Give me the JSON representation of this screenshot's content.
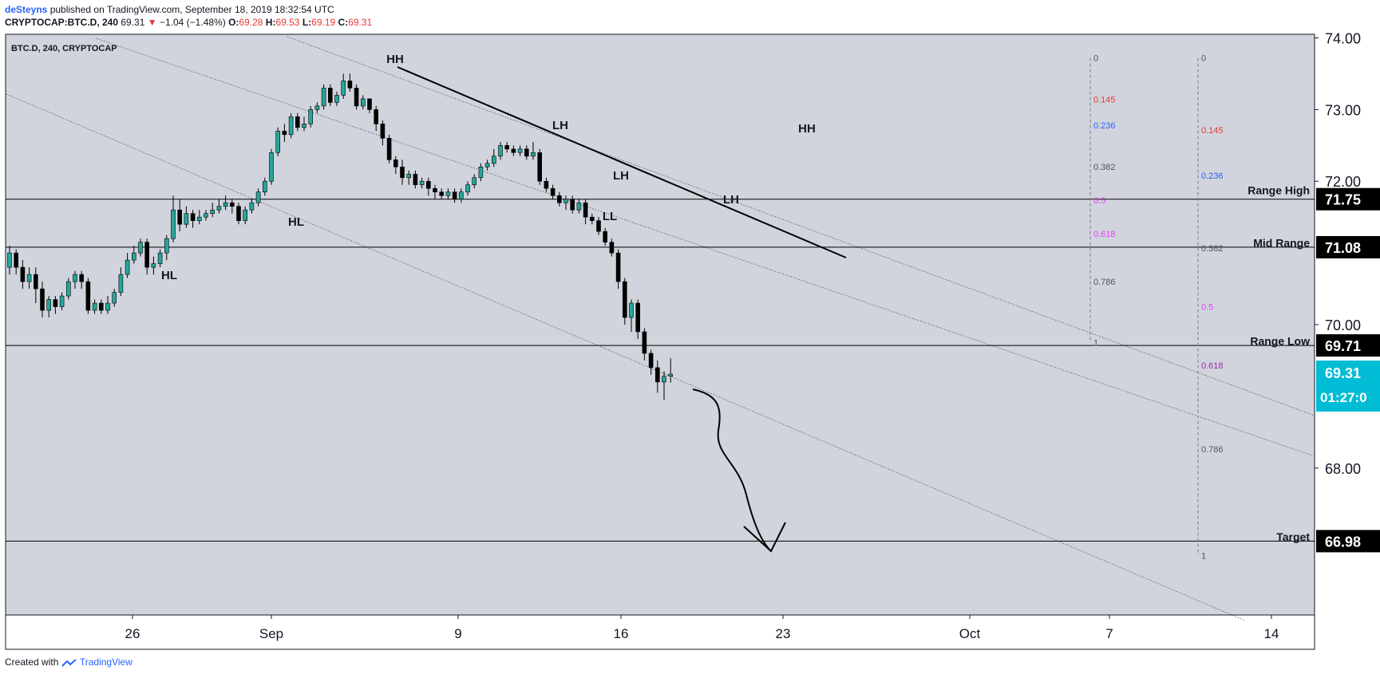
{
  "header": {
    "author": "deSteyns",
    "published": "published on TradingView.com, September 18, 2019 18:32:54 UTC",
    "symbol": "CRYPTOCAP:BTC.D, 240",
    "last": "69.31",
    "change": "−1.04 (−1.48%)",
    "o_label": "O:",
    "o": "69.28",
    "h_label": "H:",
    "h": "69.53",
    "l_label": "L:",
    "l": "69.19",
    "c_label": "C:",
    "c": "69.31"
  },
  "footer": {
    "created_with": "Created with",
    "brand": "TradingView"
  },
  "chart_data": {
    "type": "candlestick",
    "title": "BTC.D, 240, CRYPTOCAP",
    "ylim": [
      65.95,
      74.05
    ],
    "yticks": [
      "74.00",
      "73.00",
      "72.00",
      "70.00",
      "68.00"
    ],
    "xticks": [
      "26",
      "Sep",
      "9",
      "16",
      "23",
      "Oct",
      "7",
      "14"
    ],
    "colors": {
      "bg": "#d1d4dc",
      "up": "#26a69a",
      "line": "#000000",
      "fib_dash": "#787b86",
      "current": "#00bcd4"
    },
    "candles": [
      [
        70.8,
        71.0,
        71.1,
        70.7
      ],
      [
        71.0,
        70.8,
        71.05,
        70.7
      ],
      [
        70.8,
        70.6,
        70.9,
        70.5
      ],
      [
        70.6,
        70.7,
        70.8,
        70.5
      ],
      [
        70.7,
        70.5,
        70.8,
        70.3
      ],
      [
        70.5,
        70.2,
        70.6,
        70.1
      ],
      [
        70.2,
        70.35,
        70.4,
        70.1
      ],
      [
        70.35,
        70.25,
        70.4,
        70.15
      ],
      [
        70.25,
        70.4,
        70.45,
        70.2
      ],
      [
        70.4,
        70.6,
        70.65,
        70.35
      ],
      [
        70.6,
        70.7,
        70.75,
        70.5
      ],
      [
        70.7,
        70.6,
        70.75,
        70.5
      ],
      [
        70.6,
        70.2,
        70.65,
        70.15
      ],
      [
        70.2,
        70.3,
        70.35,
        70.15
      ],
      [
        70.3,
        70.2,
        70.35,
        70.15
      ],
      [
        70.2,
        70.3,
        70.4,
        70.15
      ],
      [
        70.3,
        70.45,
        70.5,
        70.25
      ],
      [
        70.45,
        70.7,
        70.8,
        70.4
      ],
      [
        70.7,
        70.9,
        71.0,
        70.65
      ],
      [
        70.9,
        71.0,
        71.1,
        70.85
      ],
      [
        71.0,
        71.15,
        71.2,
        70.95
      ],
      [
        71.15,
        70.8,
        71.2,
        70.7
      ],
      [
        70.8,
        70.85,
        70.95,
        70.7
      ],
      [
        70.85,
        71.0,
        71.05,
        70.8
      ],
      [
        71.0,
        71.2,
        71.25,
        70.9
      ],
      [
        71.2,
        71.6,
        71.8,
        71.15
      ],
      [
        71.6,
        71.4,
        71.75,
        71.3
      ],
      [
        71.4,
        71.55,
        71.65,
        71.35
      ],
      [
        71.55,
        71.45,
        71.6,
        71.35
      ],
      [
        71.45,
        71.5,
        71.6,
        71.4
      ],
      [
        71.5,
        71.55,
        71.6,
        71.45
      ],
      [
        71.55,
        71.6,
        71.7,
        71.5
      ],
      [
        71.6,
        71.65,
        71.75,
        71.55
      ],
      [
        71.65,
        71.7,
        71.8,
        71.6
      ],
      [
        71.7,
        71.65,
        71.75,
        71.55
      ],
      [
        71.65,
        71.45,
        71.7,
        71.4
      ],
      [
        71.45,
        71.6,
        71.65,
        71.4
      ],
      [
        71.6,
        71.7,
        71.75,
        71.55
      ],
      [
        71.7,
        71.85,
        71.9,
        71.65
      ],
      [
        71.85,
        72.0,
        72.05,
        71.8
      ],
      [
        72.0,
        72.4,
        72.45,
        71.95
      ],
      [
        72.4,
        72.7,
        72.75,
        72.35
      ],
      [
        72.7,
        72.65,
        72.8,
        72.55
      ],
      [
        72.65,
        72.9,
        72.95,
        72.6
      ],
      [
        72.9,
        72.75,
        72.95,
        72.7
      ],
      [
        72.75,
        72.8,
        72.9,
        72.7
      ],
      [
        72.8,
        73.0,
        73.05,
        72.75
      ],
      [
        73.0,
        73.05,
        73.1,
        72.95
      ],
      [
        73.05,
        73.3,
        73.35,
        73.0
      ],
      [
        73.3,
        73.1,
        73.35,
        73.05
      ],
      [
        73.1,
        73.2,
        73.25,
        73.05
      ],
      [
        73.2,
        73.4,
        73.5,
        73.15
      ],
      [
        73.4,
        73.3,
        73.5,
        73.25
      ],
      [
        73.3,
        73.05,
        73.35,
        73.0
      ],
      [
        73.05,
        73.15,
        73.2,
        73.0
      ],
      [
        73.15,
        73.0,
        73.15,
        72.95
      ],
      [
        73.0,
        72.8,
        73.05,
        72.7
      ],
      [
        72.8,
        72.6,
        72.85,
        72.5
      ],
      [
        72.6,
        72.3,
        72.65,
        72.25
      ],
      [
        72.3,
        72.2,
        72.35,
        72.1
      ],
      [
        72.2,
        72.05,
        72.3,
        71.95
      ],
      [
        72.05,
        72.1,
        72.15,
        71.95
      ],
      [
        72.1,
        71.95,
        72.15,
        71.9
      ],
      [
        71.95,
        72.0,
        72.05,
        71.9
      ],
      [
        72.0,
        71.9,
        72.05,
        71.8
      ],
      [
        71.9,
        71.85,
        71.95,
        71.75
      ],
      [
        71.85,
        71.8,
        71.9,
        71.75
      ],
      [
        71.8,
        71.85,
        71.9,
        71.75
      ],
      [
        71.85,
        71.75,
        71.9,
        71.7
      ],
      [
        71.75,
        71.85,
        71.9,
        71.7
      ],
      [
        71.85,
        71.95,
        72.0,
        71.8
      ],
      [
        71.95,
        72.05,
        72.1,
        71.9
      ],
      [
        72.05,
        72.2,
        72.25,
        72.0
      ],
      [
        72.2,
        72.25,
        72.3,
        72.15
      ],
      [
        72.25,
        72.35,
        72.45,
        72.2
      ],
      [
        72.35,
        72.5,
        72.55,
        72.3
      ],
      [
        72.5,
        72.45,
        72.55,
        72.4
      ],
      [
        72.45,
        72.4,
        72.5,
        72.35
      ],
      [
        72.4,
        72.45,
        72.5,
        72.35
      ],
      [
        72.45,
        72.35,
        72.5,
        72.3
      ],
      [
        72.35,
        72.4,
        72.55,
        72.3
      ],
      [
        72.4,
        72.0,
        72.45,
        71.95
      ],
      [
        72.0,
        71.9,
        72.05,
        71.85
      ],
      [
        71.9,
        71.8,
        71.95,
        71.75
      ],
      [
        71.8,
        71.7,
        71.85,
        71.65
      ],
      [
        71.7,
        71.75,
        71.8,
        71.6
      ],
      [
        71.75,
        71.6,
        71.8,
        71.55
      ],
      [
        71.6,
        71.7,
        71.75,
        71.55
      ],
      [
        71.7,
        71.5,
        71.75,
        71.4
      ],
      [
        71.5,
        71.45,
        71.55,
        71.4
      ],
      [
        71.45,
        71.3,
        71.5,
        71.25
      ],
      [
        71.3,
        71.15,
        71.35,
        71.1
      ],
      [
        71.15,
        71.0,
        71.2,
        70.95
      ],
      [
        71.0,
        70.6,
        71.05,
        70.5
      ],
      [
        70.6,
        70.1,
        70.65,
        70.0
      ],
      [
        70.1,
        70.3,
        70.35,
        69.9
      ],
      [
        70.3,
        69.9,
        70.35,
        69.8
      ],
      [
        69.9,
        69.6,
        69.95,
        69.5
      ],
      [
        69.6,
        69.4,
        69.65,
        69.3
      ],
      [
        69.4,
        69.2,
        69.5,
        69.05
      ],
      [
        69.2,
        69.28,
        69.35,
        68.95
      ],
      [
        69.28,
        69.31,
        69.53,
        69.19
      ]
    ],
    "levels": [
      {
        "label": "Range High",
        "value": 71.75
      },
      {
        "label": "Mid Range",
        "value": 71.08
      },
      {
        "label": "Range Low",
        "value": 69.71
      },
      {
        "label": "Target",
        "value": 66.98
      }
    ],
    "price_labels": [
      {
        "value": 71.75,
        "text": "71.75"
      },
      {
        "value": 71.08,
        "text": "71.08"
      },
      {
        "value": 69.71,
        "text": "69.71"
      },
      {
        "value": 66.98,
        "text": "66.98"
      }
    ],
    "current_price": "69.31",
    "countdown": "01:27:0",
    "pattern_labels": [
      "HH",
      "LH",
      "LH",
      "LH",
      "HH",
      "HL",
      "HL",
      "LL"
    ],
    "fib1": {
      "top": 73.72,
      "bottom": 69.75,
      "levels": [
        {
          "r": 0,
          "t": "0",
          "c": "#555555"
        },
        {
          "r": 0.145,
          "t": "0.145",
          "c": "#e53935"
        },
        {
          "r": 0.236,
          "t": "0.236",
          "c": "#2962ff"
        },
        {
          "r": 0.382,
          "t": "0.382",
          "c": "#555555"
        },
        {
          "r": 0.5,
          "t": "0.5",
          "c": "#e040fb"
        },
        {
          "r": 0.618,
          "t": "0.618",
          "c": "#e040fb"
        },
        {
          "r": 0.786,
          "t": "0.786",
          "c": "#555555"
        },
        {
          "r": 1,
          "t": "1",
          "c": "#555555"
        }
      ]
    },
    "fib2": {
      "top": 73.72,
      "bottom": 66.78,
      "levels": [
        {
          "r": 0,
          "t": "0",
          "c": "#555555"
        },
        {
          "r": 0.145,
          "t": "0.145",
          "c": "#e53935"
        },
        {
          "r": 0.236,
          "t": "0.236",
          "c": "#2962ff"
        },
        {
          "r": 0.382,
          "t": "0.382",
          "c": "#555555"
        },
        {
          "r": 0.5,
          "t": "0.5",
          "c": "#e040fb"
        },
        {
          "r": 0.618,
          "t": "0.618",
          "c": "#9c27b0"
        },
        {
          "r": 0.786,
          "t": "0.786",
          "c": "#555555"
        },
        {
          "r": 1,
          "t": "1",
          "c": "#555555"
        }
      ]
    }
  }
}
